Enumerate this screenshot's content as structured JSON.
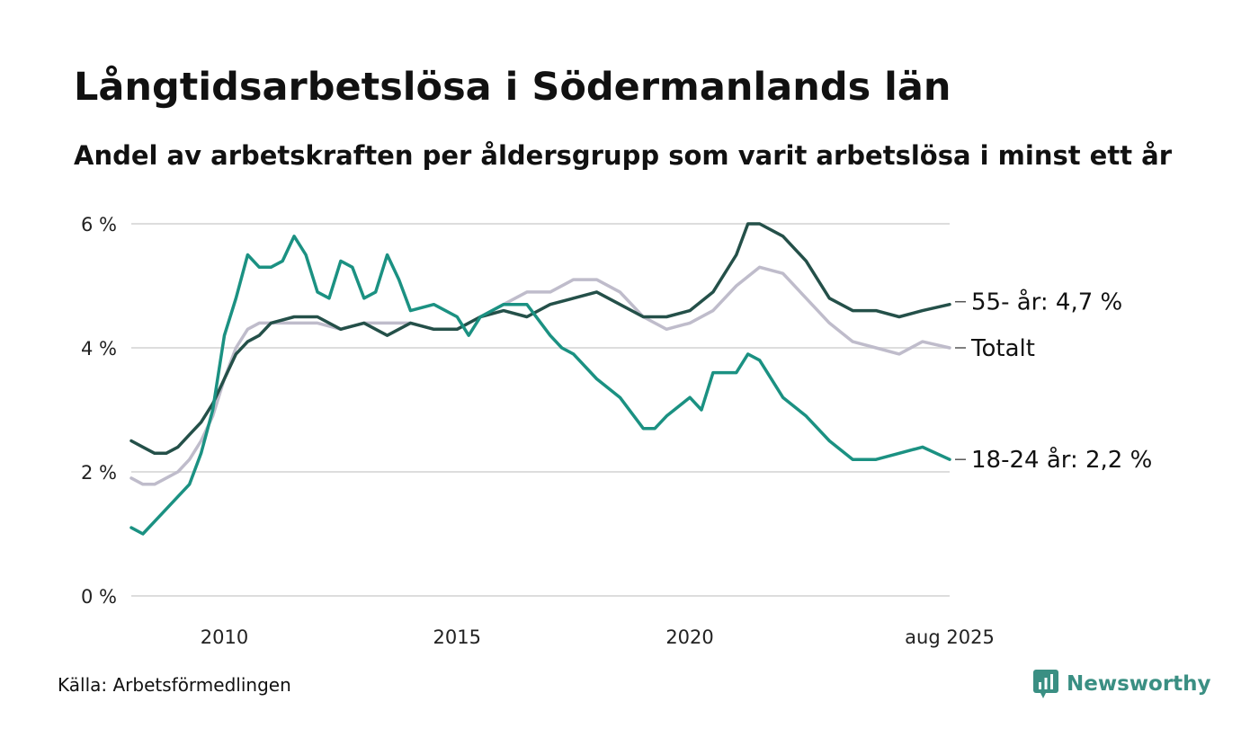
{
  "title": "Långtidsarbetslösa i Södermanlands län",
  "subtitle": "Andel av arbetskraften per åldersgrupp som varit arbetslösa i minst ett år",
  "source": "Källa: Arbetsförmedlingen",
  "brand": "Newsworthy",
  "colors": {
    "total": "#bfbccb",
    "age55": "#245049",
    "age18_24": "#1b9182",
    "grid": "#dddddd",
    "brand": "#3a8f83"
  },
  "chart_data": {
    "type": "line",
    "title": "Långtidsarbetslösa i Södermanlands län",
    "subtitle": "Andel av arbetskraften per åldersgrupp som varit arbetslösa i minst ett år",
    "ylim": [
      0,
      6
    ],
    "xlim": [
      2008.0,
      2025.583
    ],
    "y_ticks": [
      0,
      2,
      4,
      6
    ],
    "y_tick_labels": [
      "0 %",
      "2 %",
      "4 %",
      "6 %"
    ],
    "x_ticks": [
      2010,
      2015,
      2020,
      2025.583
    ],
    "x_tick_labels": [
      "2010",
      "2015",
      "2020",
      "aug 2025"
    ],
    "grid": true,
    "legend": "direct labels at right end",
    "series": [
      {
        "name": "Totalt",
        "label": "Totalt",
        "color": "#bfbccb",
        "x": [
          2008.0,
          2008.25,
          2008.5,
          2008.75,
          2009.0,
          2009.25,
          2009.5,
          2009.75,
          2010.0,
          2010.25,
          2010.5,
          2010.75,
          2011.0,
          2011.5,
          2012.0,
          2012.5,
          2013.0,
          2013.5,
          2014.0,
          2014.5,
          2015.0,
          2015.5,
          2016.0,
          2016.5,
          2017.0,
          2017.5,
          2018.0,
          2018.5,
          2019.0,
          2019.5,
          2020.0,
          2020.5,
          2021.0,
          2021.5,
          2022.0,
          2022.5,
          2023.0,
          2023.5,
          2024.0,
          2024.5,
          2025.0,
          2025.583
        ],
        "values": [
          1.9,
          1.8,
          1.8,
          1.9,
          2.0,
          2.2,
          2.5,
          2.9,
          3.5,
          4.0,
          4.3,
          4.4,
          4.4,
          4.4,
          4.4,
          4.3,
          4.4,
          4.4,
          4.4,
          4.3,
          4.3,
          4.5,
          4.7,
          4.9,
          4.9,
          5.1,
          5.1,
          4.9,
          4.5,
          4.3,
          4.4,
          4.6,
          5.0,
          5.3,
          5.2,
          4.8,
          4.4,
          4.1,
          4.0,
          3.9,
          4.1,
          4.0
        ]
      },
      {
        "name": "55- år",
        "label": "55- år: 4,7 %",
        "color": "#245049",
        "x": [
          2008.0,
          2008.25,
          2008.5,
          2008.75,
          2009.0,
          2009.25,
          2009.5,
          2009.75,
          2010.0,
          2010.25,
          2010.5,
          2010.75,
          2011.0,
          2011.5,
          2012.0,
          2012.5,
          2013.0,
          2013.5,
          2014.0,
          2014.5,
          2015.0,
          2015.5,
          2016.0,
          2016.5,
          2017.0,
          2017.5,
          2018.0,
          2018.5,
          2019.0,
          2019.5,
          2020.0,
          2020.5,
          2021.0,
          2021.25,
          2021.5,
          2022.0,
          2022.5,
          2023.0,
          2023.5,
          2024.0,
          2024.5,
          2025.0,
          2025.583
        ],
        "values": [
          2.5,
          2.4,
          2.3,
          2.3,
          2.4,
          2.6,
          2.8,
          3.1,
          3.5,
          3.9,
          4.1,
          4.2,
          4.4,
          4.5,
          4.5,
          4.3,
          4.4,
          4.2,
          4.4,
          4.3,
          4.3,
          4.5,
          4.6,
          4.5,
          4.7,
          4.8,
          4.9,
          4.7,
          4.5,
          4.5,
          4.6,
          4.9,
          5.5,
          6.0,
          6.0,
          5.8,
          5.4,
          4.8,
          4.6,
          4.6,
          4.5,
          4.6,
          4.7
        ]
      },
      {
        "name": "18-24 år",
        "label": "18-24 år: 2,2 %",
        "color": "#1b9182",
        "x": [
          2008.0,
          2008.25,
          2008.5,
          2008.75,
          2009.0,
          2009.25,
          2009.5,
          2009.75,
          2010.0,
          2010.25,
          2010.5,
          2010.75,
          2011.0,
          2011.25,
          2011.5,
          2011.75,
          2012.0,
          2012.25,
          2012.5,
          2012.75,
          2013.0,
          2013.25,
          2013.5,
          2013.75,
          2014.0,
          2014.5,
          2015.0,
          2015.25,
          2015.5,
          2016.0,
          2016.5,
          2017.0,
          2017.25,
          2017.5,
          2018.0,
          2018.5,
          2019.0,
          2019.25,
          2019.5,
          2020.0,
          2020.25,
          2020.5,
          2021.0,
          2021.25,
          2021.5,
          2022.0,
          2022.5,
          2023.0,
          2023.5,
          2024.0,
          2024.5,
          2025.0,
          2025.583
        ],
        "values": [
          1.1,
          1.0,
          1.2,
          1.4,
          1.6,
          1.8,
          2.3,
          3.0,
          4.2,
          4.8,
          5.5,
          5.3,
          5.3,
          5.4,
          5.8,
          5.5,
          4.9,
          4.8,
          5.4,
          5.3,
          4.8,
          4.9,
          5.5,
          5.1,
          4.6,
          4.7,
          4.5,
          4.2,
          4.5,
          4.7,
          4.7,
          4.2,
          4.0,
          3.9,
          3.5,
          3.2,
          2.7,
          2.7,
          2.9,
          3.2,
          3.0,
          3.6,
          3.6,
          3.9,
          3.8,
          3.2,
          2.9,
          2.5,
          2.2,
          2.2,
          2.3,
          2.4,
          2.2
        ]
      }
    ]
  }
}
